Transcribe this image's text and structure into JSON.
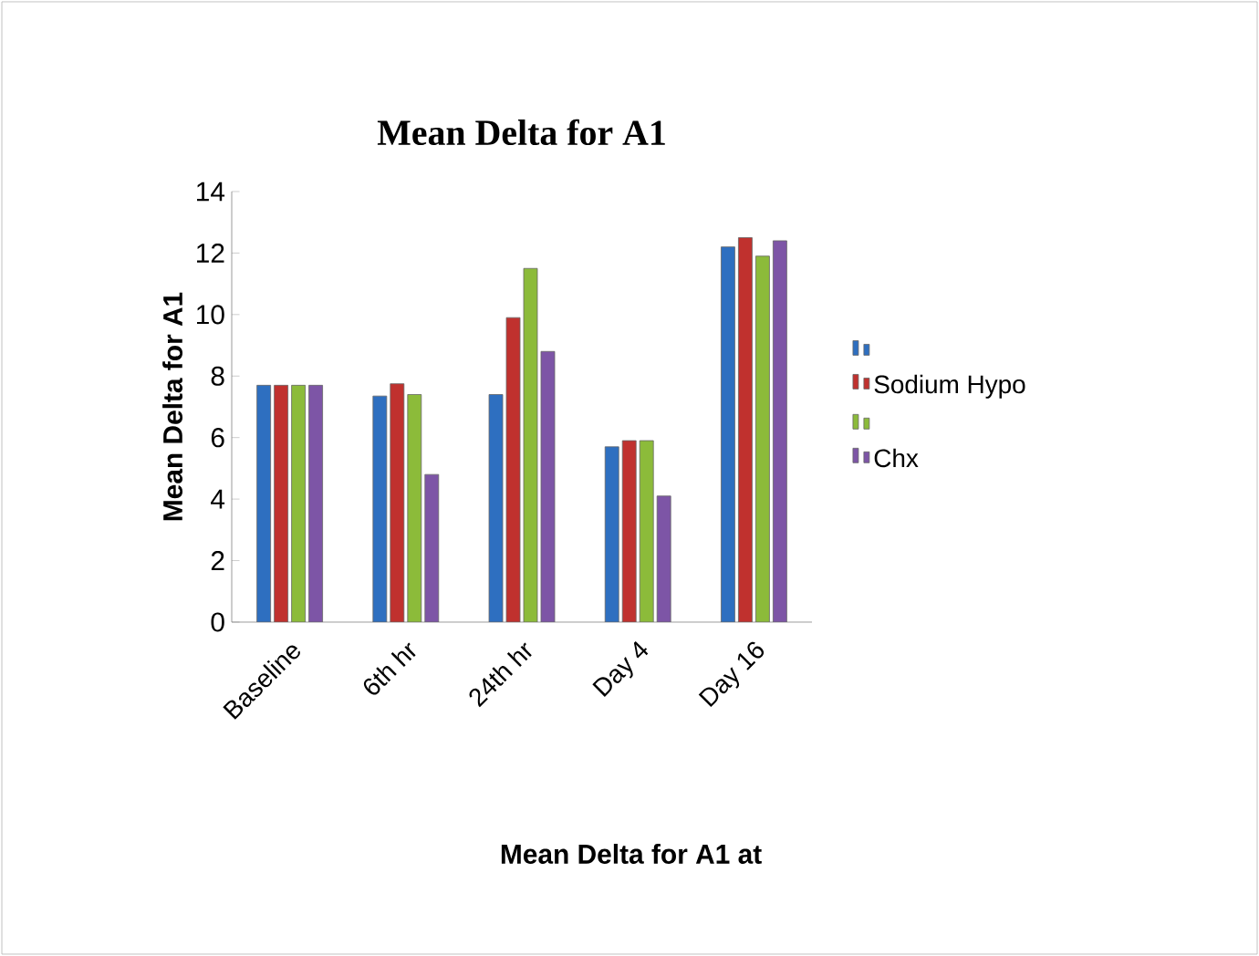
{
  "chart_data": {
    "type": "bar",
    "title": "Mean Delta for A1",
    "xlabel": "Mean Delta for A1 at",
    "ylabel": "Mean Delta for A1",
    "categories": [
      "Baseline",
      "6th hr",
      "24th hr",
      "Day 4",
      "Day 16"
    ],
    "series": [
      {
        "color": "#2e6fc0",
        "values": [
          7.7,
          7.35,
          7.4,
          5.7,
          12.2
        ]
      },
      {
        "name": "Sodium Hypo",
        "color": "#c0312e",
        "values": [
          7.7,
          7.75,
          9.9,
          5.9,
          12.5
        ]
      },
      {
        "color": "#8cbb3a",
        "values": [
          7.7,
          7.4,
          11.5,
          5.9,
          11.9
        ]
      },
      {
        "name": "Chx",
        "color": "#7d55a6",
        "values": [
          7.7,
          4.8,
          8.8,
          4.1,
          12.4
        ]
      }
    ],
    "ylim": [
      0,
      14
    ],
    "yticks": [
      0,
      2,
      4,
      6,
      8,
      10,
      12,
      14
    ],
    "grid": false,
    "legend": "right"
  }
}
